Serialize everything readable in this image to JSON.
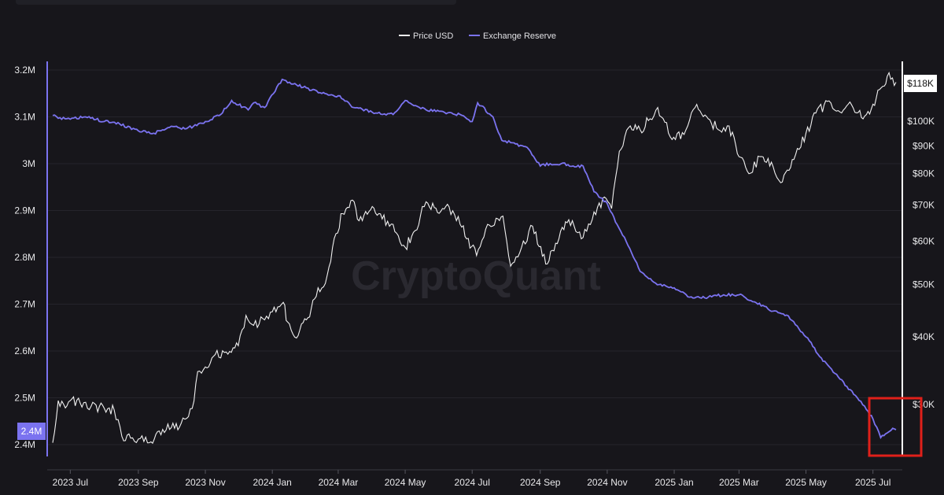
{
  "chart_data": {
    "type": "line",
    "watermark": "CryptoQuant",
    "legend": {
      "placement": "top-center",
      "entries": [
        "Price USD",
        "Exchange Reserve"
      ]
    },
    "colors": {
      "price": "#f0f0f0",
      "reserve": "#7b73f0",
      "highlight": "#e0201a",
      "background": "#17161b"
    },
    "x_ticks": [
      "2023 Jul",
      "2023 Sep",
      "2023 Nov",
      "2024 Jan",
      "2024 Mar",
      "2024 May",
      "2024 Jul",
      "2024 Sep",
      "2024 Nov",
      "2025 Jan",
      "2025 Mar",
      "2025 May",
      "2025 Jul"
    ],
    "left_axis": {
      "ticks": [
        "3.2M",
        "3.1M",
        "3M",
        "2.9M",
        "2.8M",
        "2.7M",
        "2.6M",
        "2.5M",
        "2.4M"
      ],
      "values": [
        3200000,
        3100000,
        3000000,
        2900000,
        2800000,
        2700000,
        2600000,
        2500000,
        2400000
      ],
      "ylim": [
        2400000,
        3200000
      ],
      "current_label": "2.4M"
    },
    "right_axis": {
      "scale": "log",
      "ticks": [
        "$100K",
        "$90K",
        "$80K",
        "$70K",
        "$60K",
        "$50K",
        "$40K",
        "$30K"
      ],
      "values": [
        100000,
        90000,
        80000,
        70000,
        60000,
        50000,
        40000,
        30000
      ],
      "current_label": "$118K"
    },
    "series": [
      {
        "name": "Price USD",
        "axis": "right",
        "x": [
          "2023-06-15",
          "2023-06-20",
          "2023-06-25",
          "2023-07-01",
          "2023-07-10",
          "2023-07-20",
          "2023-08-01",
          "2023-08-10",
          "2023-08-17",
          "2023-08-25",
          "2023-09-01",
          "2023-09-11",
          "2023-09-20",
          "2023-10-01",
          "2023-10-10",
          "2023-10-20",
          "2023-10-25",
          "2023-11-01",
          "2023-11-10",
          "2023-11-20",
          "2023-12-01",
          "2023-12-08",
          "2023-12-15",
          "2023-12-25",
          "2024-01-01",
          "2024-01-11",
          "2024-01-15",
          "2024-01-23",
          "2024-02-01",
          "2024-02-10",
          "2024-02-20",
          "2024-02-28",
          "2024-03-05",
          "2024-03-14",
          "2024-03-20",
          "2024-04-01",
          "2024-04-10",
          "2024-04-20",
          "2024-05-01",
          "2024-05-10",
          "2024-05-20",
          "2024-06-01",
          "2024-06-10",
          "2024-06-20",
          "2024-07-05",
          "2024-07-15",
          "2024-07-29",
          "2024-08-05",
          "2024-08-15",
          "2024-08-25",
          "2024-09-06",
          "2024-09-15",
          "2024-09-27",
          "2024-10-10",
          "2024-10-20",
          "2024-10-31",
          "2024-11-05",
          "2024-11-12",
          "2024-11-22",
          "2024-12-01",
          "2024-12-10",
          "2024-12-17",
          "2024-12-30",
          "2025-01-10",
          "2025-01-20",
          "2025-02-01",
          "2025-02-10",
          "2025-02-20",
          "2025-03-01",
          "2025-03-10",
          "2025-03-20",
          "2025-04-01",
          "2025-04-08",
          "2025-04-20",
          "2025-05-01",
          "2025-05-10",
          "2025-05-22",
          "2025-06-01",
          "2025-06-10",
          "2025-06-22",
          "2025-07-01",
          "2025-07-10",
          "2025-07-14",
          "2025-07-22"
        ],
        "values": [
          25500,
          30500,
          30000,
          30500,
          30200,
          29800,
          29500,
          29300,
          26200,
          26000,
          25900,
          25500,
          26800,
          27200,
          27700,
          29500,
          34500,
          35200,
          37100,
          37500,
          38500,
          43800,
          42000,
          43000,
          44500,
          46300,
          42600,
          39800,
          43000,
          47500,
          52000,
          62000,
          67500,
          71500,
          65500,
          69600,
          66000,
          64500,
          58500,
          62800,
          71000,
          67600,
          69500,
          64500,
          56500,
          64500,
          66800,
          54000,
          58500,
          64000,
          54500,
          59500,
          65800,
          61000,
          68000,
          72000,
          69000,
          88000,
          98000,
          96400,
          101000,
          106000,
          92500,
          94500,
          106000,
          101000,
          96500,
          98000,
          86000,
          80000,
          86000,
          82500,
          77000,
          85000,
          95000,
          103500,
          109000,
          104000,
          108500,
          101000,
          107500,
          116000,
          121000,
          118000
        ]
      },
      {
        "name": "Exchange Reserve",
        "axis": "left",
        "x": [
          "2023-06-15",
          "2023-06-20",
          "2023-07-01",
          "2023-07-15",
          "2023-08-01",
          "2023-08-15",
          "2023-09-01",
          "2023-09-15",
          "2023-10-01",
          "2023-10-15",
          "2023-11-01",
          "2023-11-15",
          "2023-11-25",
          "2023-12-10",
          "2023-12-15",
          "2023-12-25",
          "2024-01-10",
          "2024-01-20",
          "2024-02-01",
          "2024-02-15",
          "2024-03-01",
          "2024-03-15",
          "2024-04-01",
          "2024-04-20",
          "2024-05-01",
          "2024-05-20",
          "2024-06-01",
          "2024-06-20",
          "2024-07-01",
          "2024-07-06",
          "2024-07-20",
          "2024-07-28",
          "2024-08-05",
          "2024-08-20",
          "2024-09-01",
          "2024-09-10",
          "2024-09-20",
          "2024-10-01",
          "2024-10-10",
          "2024-10-20",
          "2024-11-01",
          "2024-11-10",
          "2024-11-20",
          "2024-12-01",
          "2024-12-15",
          "2025-01-01",
          "2025-01-15",
          "2025-02-01",
          "2025-02-15",
          "2025-03-01",
          "2025-03-15",
          "2025-04-01",
          "2025-04-15",
          "2025-05-01",
          "2025-05-15",
          "2025-06-01",
          "2025-06-15",
          "2025-06-25",
          "2025-07-01",
          "2025-07-08",
          "2025-07-14",
          "2025-07-19",
          "2025-07-22"
        ],
        "values": [
          3103000,
          3097000,
          3095000,
          3100000,
          3090000,
          3085000,
          3070000,
          3065000,
          3080000,
          3075000,
          3090000,
          3105000,
          3135000,
          3115000,
          3130000,
          3120000,
          3180000,
          3170000,
          3162000,
          3150000,
          3145000,
          3120000,
          3110000,
          3105000,
          3135000,
          3115000,
          3112000,
          3105000,
          3090000,
          3130000,
          3100000,
          3050000,
          3045000,
          3035000,
          2995000,
          3000000,
          3000000,
          2995000,
          2995000,
          2940000,
          2915000,
          2870000,
          2825000,
          2770000,
          2745000,
          2735000,
          2715000,
          2715000,
          2720000,
          2720000,
          2705000,
          2685000,
          2675000,
          2630000,
          2585000,
          2540000,
          2505000,
          2475000,
          2455000,
          2415000,
          2425000,
          2435000,
          2432000
        ]
      }
    ]
  }
}
